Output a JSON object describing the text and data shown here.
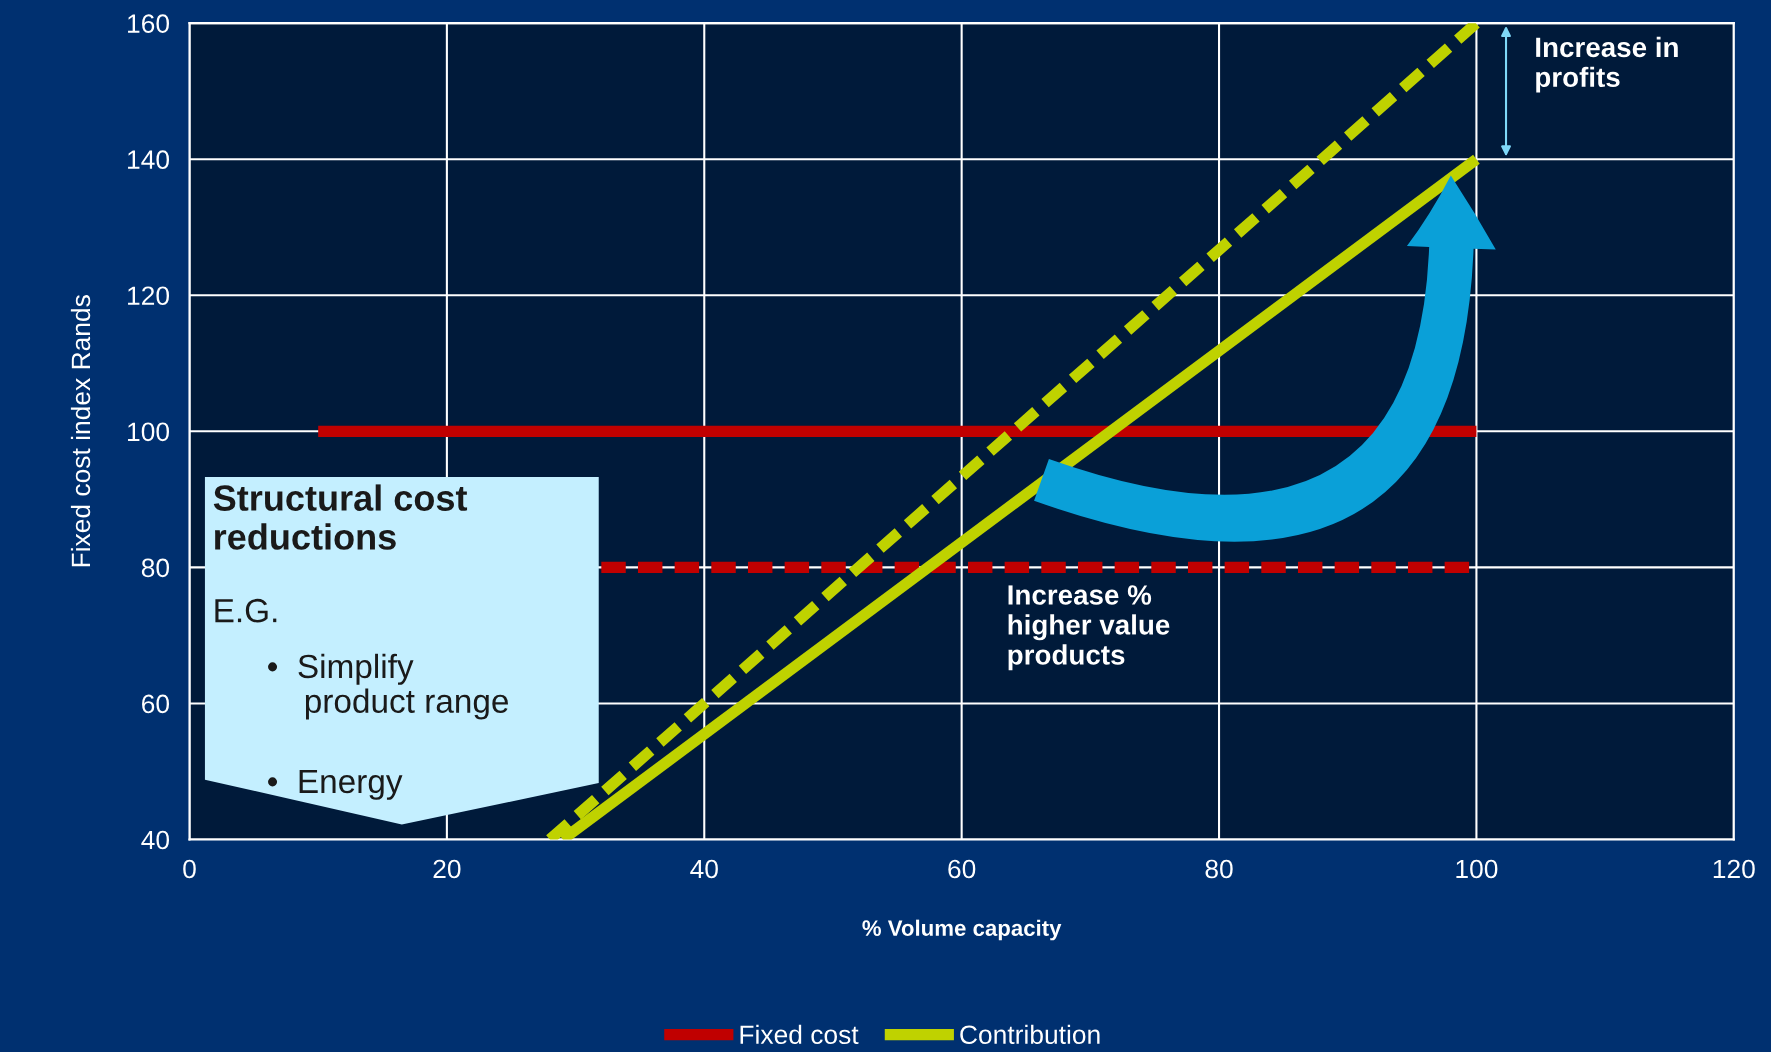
{
  "chart_data": {
    "type": "line",
    "xlabel": "% Volume capacity",
    "ylabel": "Fixed cost index Rands",
    "xlim": [
      0,
      120
    ],
    "xticks": [
      0,
      20,
      40,
      60,
      80,
      100,
      120
    ],
    "ylim": [
      40,
      160
    ],
    "yticks": [
      40,
      60,
      80,
      100,
      120,
      140,
      160
    ],
    "grid": true,
    "legend": "bottom",
    "marker": "none",
    "series": [
      {
        "name": "Fixed cost",
        "color": "#c00000",
        "x": [
          10,
          100
        ],
        "values": [
          100,
          100
        ],
        "line_style": "solid"
      },
      {
        "color": "#c00000",
        "x": [
          32,
          100
        ],
        "values": [
          80,
          80
        ],
        "line_style": "dashed"
      },
      {
        "name": "Contribution",
        "color": "#bfd200",
        "x": [
          29,
          100
        ],
        "values": [
          40,
          140
        ],
        "line_style": "solid"
      },
      {
        "color": "#bfd200",
        "x": [
          28,
          100
        ],
        "values": [
          40,
          160
        ],
        "line_style": "dashed"
      }
    ],
    "annotations": [
      "Increase in\nprofits",
      "Increase %\nhigher value\nproducts",
      "Structural cost\nreductions",
      "E.G.",
      "•  Simplify\n    product range",
      "•  Energy"
    ]
  }
}
